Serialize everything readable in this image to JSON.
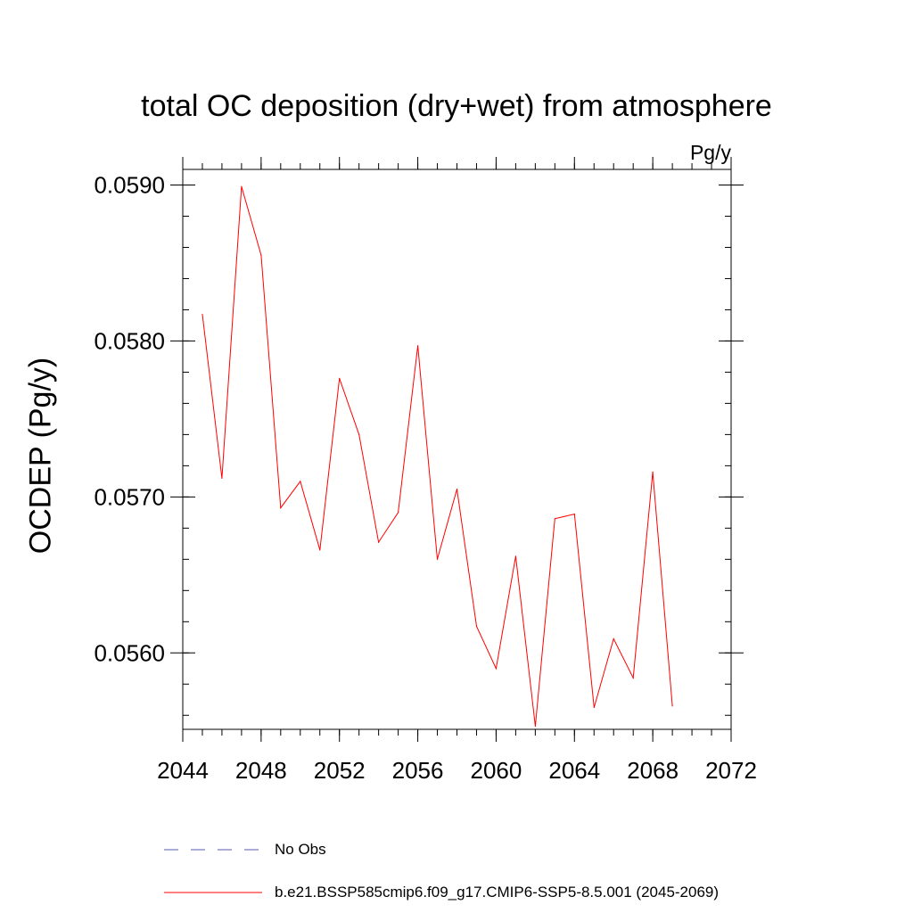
{
  "chart_data": {
    "type": "line",
    "title": "total OC deposition (dry+wet) from atmosphere",
    "units": "Pg/y",
    "xlabel": "",
    "ylabel": "OCDEP  (Pg/y)",
    "xlim": [
      2044,
      2072
    ],
    "ylim": [
      0.05551,
      0.0591
    ],
    "x_ticks": [
      2044,
      2048,
      2052,
      2056,
      2060,
      2064,
      2068,
      2072
    ],
    "x_tick_labels": [
      "2044",
      "2048",
      "2052",
      "2056",
      "2060",
      "2064",
      "2068",
      "2072"
    ],
    "y_ticks": [
      0.056,
      0.057,
      0.058,
      0.059
    ],
    "y_tick_labels": [
      "0.0560",
      "0.0570",
      "0.0580",
      "0.0590"
    ],
    "grid": false,
    "series": [
      {
        "name": "b.e21.BSSP585cmip6.f09_g17.CMIP6-SSP5-8.5.001 (2045-2069)",
        "color": "#ff0000",
        "x": [
          2045,
          2046,
          2047,
          2048,
          2049,
          2050,
          2051,
          2052,
          2053,
          2054,
          2055,
          2056,
          2057,
          2058,
          2059,
          2060,
          2061,
          2062,
          2063,
          2064,
          2065,
          2066,
          2067,
          2068,
          2069
        ],
        "values": [
          0.05817,
          0.05712,
          0.05899,
          0.05855,
          0.05693,
          0.0571,
          0.05666,
          0.05776,
          0.0574,
          0.05671,
          0.0569,
          0.05797,
          0.0566,
          0.05705,
          0.05617,
          0.0559,
          0.05662,
          0.05553,
          0.05686,
          0.05689,
          0.05565,
          0.05609,
          0.05584,
          0.05716,
          0.05566
        ]
      }
    ],
    "legend": [
      {
        "label": "No Obs",
        "style": "dashed",
        "color": "#5a5ab4"
      },
      {
        "label": "b.e21.BSSP585cmip6.f09_g17.CMIP6-SSP5-8.5.001 (2045-2069)",
        "style": "solid",
        "color": "#ff0000"
      }
    ]
  }
}
